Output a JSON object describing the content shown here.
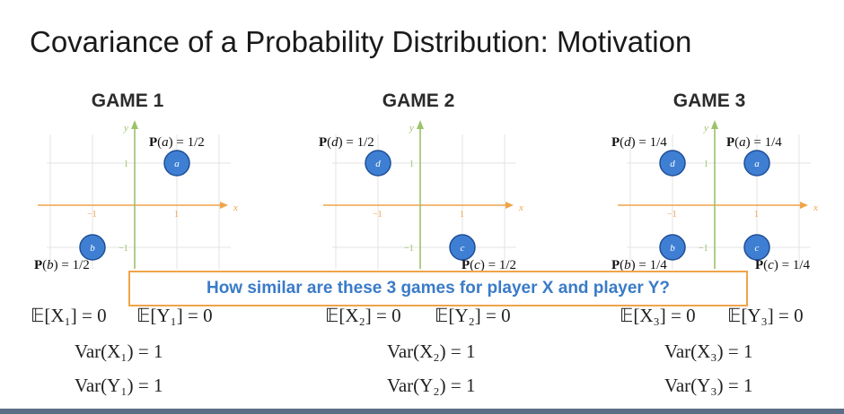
{
  "slide": {
    "title": "Covariance of a Probability Distribution: Motivation",
    "question": "How similar are these 3 games for player X and player Y?"
  },
  "games": [
    {
      "title": "GAME 1",
      "points": [
        {
          "name": "a",
          "x": 1,
          "y": 1,
          "prob": "1/2"
        },
        {
          "name": "b",
          "x": -1,
          "y": -1,
          "prob": "1/2"
        }
      ],
      "expectations": [
        "𝔼[X₁] = 0",
        "𝔼[Y₁] = 0"
      ],
      "var_x": "Var(X₁) = 1",
      "var_y": "Var(Y₁) = 1"
    },
    {
      "title": "GAME 2",
      "points": [
        {
          "name": "d",
          "x": -1,
          "y": 1,
          "prob": "1/2"
        },
        {
          "name": "c",
          "x": 1,
          "y": -1,
          "prob": "1/2"
        }
      ],
      "expectations": [
        "𝔼[X₂] = 0",
        "𝔼[Y₂] = 0"
      ],
      "var_x": "Var(X₂) = 1",
      "var_y": "Var(Y₂) = 1"
    },
    {
      "title": "GAME 3",
      "points": [
        {
          "name": "d",
          "x": -1,
          "y": 1,
          "prob": "1/4"
        },
        {
          "name": "a",
          "x": 1,
          "y": 1,
          "prob": "1/4"
        },
        {
          "name": "b",
          "x": -1,
          "y": -1,
          "prob": "1/4"
        },
        {
          "name": "c",
          "x": 1,
          "y": -1,
          "prob": "1/4"
        }
      ],
      "expectations": [
        "𝔼[X₃] = 0",
        "𝔼[Y₃] = 0"
      ],
      "var_x": "Var(X₃) = 1",
      "var_y": "Var(Y₃) = 1"
    }
  ],
  "axis": {
    "x_label": "x",
    "y_label": "y",
    "ticks": [
      "−1",
      "1"
    ]
  },
  "colors": {
    "axis": "#f0a44a",
    "y_axis": "#9cc26a",
    "point_fill": "#3f7fd3",
    "point_stroke": "#1f4f96",
    "grid": "#e3e3e3",
    "banner_border": "#f0a44a",
    "banner_text": "#3a7bc8"
  }
}
